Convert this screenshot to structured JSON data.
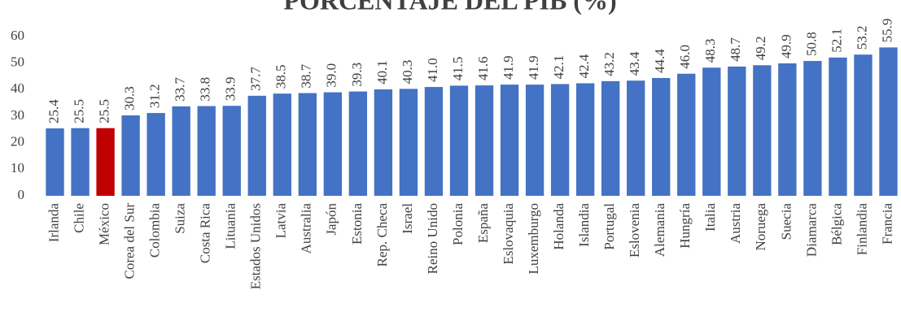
{
  "chart_data": {
    "type": "bar",
    "title": "PORCENTAJE DEL PIB (%)",
    "categories": [
      "Irlanda",
      "Chile",
      "México",
      "Corea del Sur",
      "Colombia",
      "Suiza",
      "Costa Rica",
      "Lituania",
      "Estados Unidos",
      "Latvia",
      "Australia",
      "Japón",
      "Estonia",
      "Rep. Checa",
      "Israel",
      "Reino Unido",
      "Polonia",
      "España",
      "Eslovaquia",
      "Luxemburgo",
      "Holanda",
      "Islandia",
      "Portugal",
      "Eslovenia",
      "Alemania",
      "Hungría",
      "Italia",
      "Austria",
      "Noruega",
      "Suecia",
      "Diamarca",
      "Bélgica",
      "Finlandia",
      "Francia"
    ],
    "values": [
      25.4,
      25.5,
      25.5,
      30.3,
      31.2,
      33.7,
      33.8,
      33.9,
      37.7,
      38.5,
      38.7,
      39.0,
      39.3,
      40.1,
      40.3,
      41.0,
      41.5,
      41.6,
      41.9,
      41.9,
      42.1,
      42.4,
      43.2,
      43.4,
      44.4,
      46.0,
      48.3,
      48.7,
      49.2,
      49.9,
      50.8,
      52.1,
      53.2,
      55.9
    ],
    "value_labels": [
      "25.4",
      "25.5",
      "25.5",
      "30.3",
      "31.2",
      "33.7",
      "33.8",
      "33.9",
      "37.7",
      "38.5",
      "38.7",
      "39.0",
      "39.3",
      "40.1",
      "40.3",
      "41.0",
      "41.5",
      "41.6",
      "41.9",
      "41.9",
      "42.1",
      "42.4",
      "43.2",
      "43.4",
      "44.4",
      "46.0",
      "48.3",
      "48.7",
      "49.2",
      "49.9",
      "50.8",
      "52.1",
      "53.2",
      "55.9"
    ],
    "colors": [
      "#4472c4",
      "#4472c4",
      "#c00000",
      "#4472c4",
      "#4472c4",
      "#4472c4",
      "#4472c4",
      "#4472c4",
      "#4472c4",
      "#4472c4",
      "#4472c4",
      "#4472c4",
      "#4472c4",
      "#4472c4",
      "#4472c4",
      "#4472c4",
      "#4472c4",
      "#4472c4",
      "#4472c4",
      "#4472c4",
      "#4472c4",
      "#4472c4",
      "#4472c4",
      "#4472c4",
      "#4472c4",
      "#4472c4",
      "#4472c4",
      "#4472c4",
      "#4472c4",
      "#4472c4",
      "#4472c4",
      "#4472c4",
      "#4472c4",
      "#4472c4"
    ],
    "ylim": [
      0,
      60
    ],
    "yticks": [
      0,
      10,
      20,
      30,
      40,
      50,
      60
    ],
    "grid": false
  }
}
